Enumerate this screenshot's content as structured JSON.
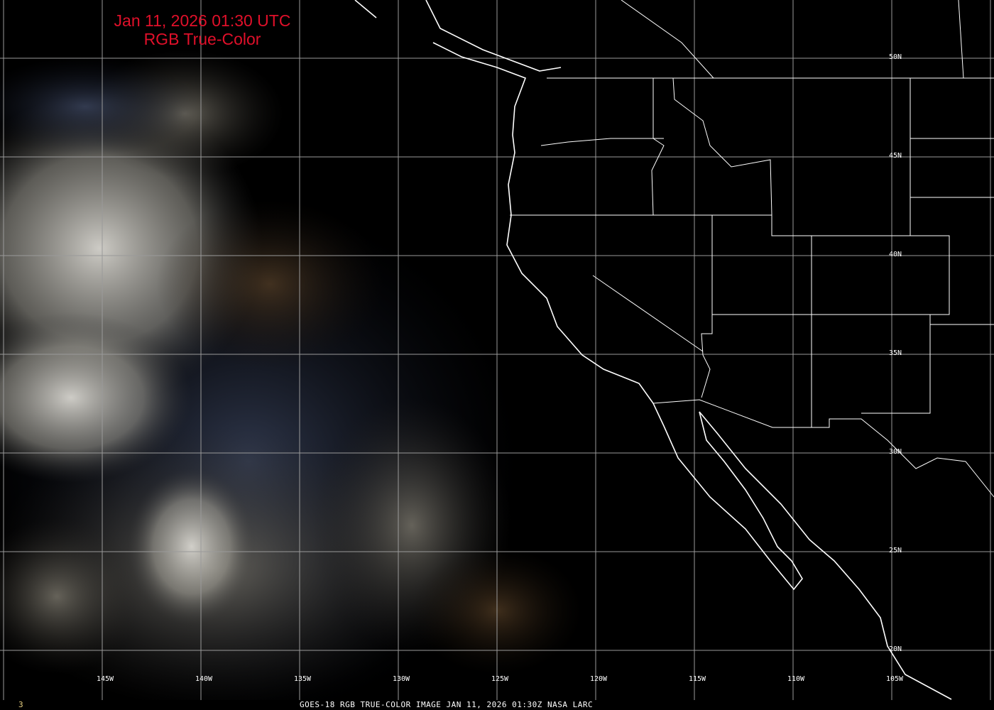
{
  "title": {
    "line1": "Jan 11, 2026 01:30 UTC",
    "line2": "RGB True-Color"
  },
  "lon_labels": [
    "145W",
    "140W",
    "135W",
    "130W",
    "125W",
    "120W",
    "115W",
    "110W",
    "105W"
  ],
  "lat_labels": [
    "50N",
    "45N",
    "40N",
    "35N",
    "30N",
    "25N",
    "20N"
  ],
  "footer": {
    "frame_number": "3",
    "caption": "GOES-18 RGB TRUE-COLOR IMAGE   JAN 11, 2026 01:30Z    NASA LARC"
  },
  "colors": {
    "title": "#e0102a",
    "grid": "#9a9a9a",
    "borders": "#ffffff",
    "background": "#000000"
  }
}
